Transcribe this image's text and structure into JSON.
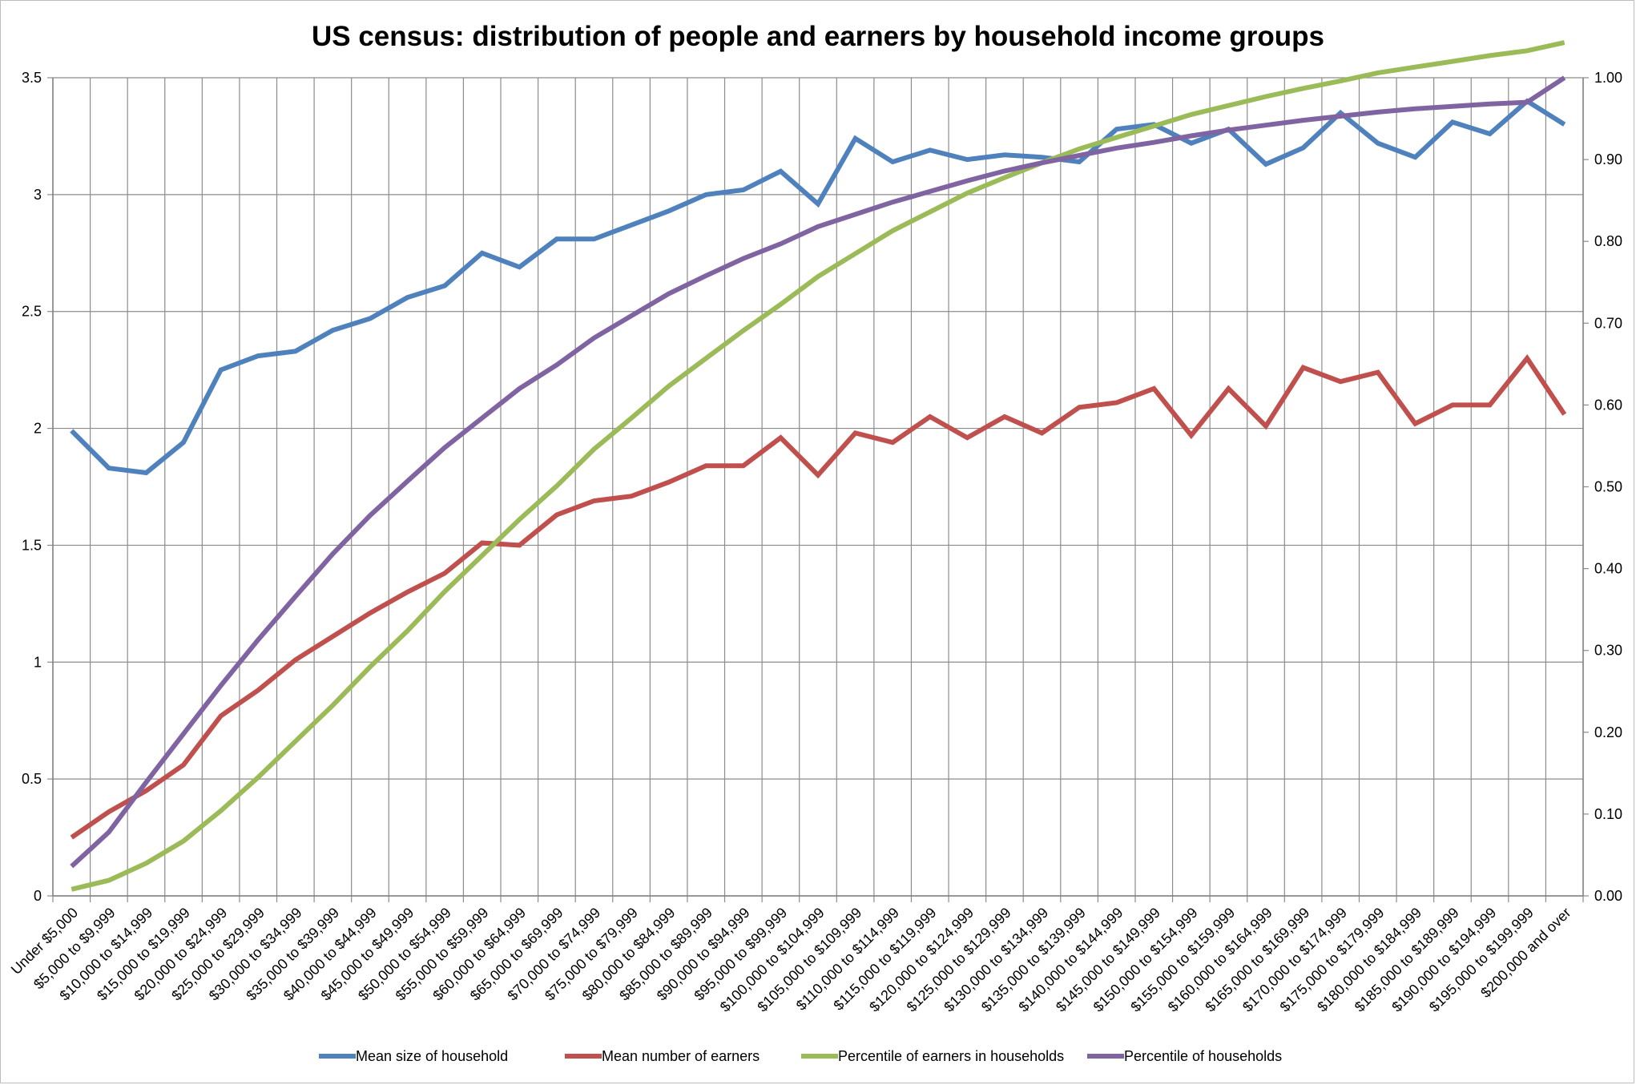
{
  "chart_data": {
    "type": "line",
    "title": "US census: distribution of people and earners by household income groups",
    "xlabel": "",
    "ylabel": "",
    "ylim": [
      0,
      3.5
    ],
    "y2lim": [
      0,
      1.0
    ],
    "y_ticks": [
      "0",
      "0.5",
      "1",
      "1.5",
      "2",
      "2.5",
      "3",
      "3.5"
    ],
    "y2_ticks": [
      "0.00",
      "0.10",
      "0.20",
      "0.30",
      "0.40",
      "0.50",
      "0.60",
      "0.70",
      "0.80",
      "0.90",
      "1.00"
    ],
    "grid": true,
    "legend_position": "bottom",
    "categories": [
      "Under $5,000",
      "$5,000 to $9,999",
      "$10,000 to $14,999",
      "$15,000 to $19,999",
      "$20,000 to $24,999",
      "$25,000 to $29,999",
      "$30,000 to $34,999",
      "$35,000 to $39,999",
      "$40,000 to $44,999",
      "$45,000 to $49,999",
      "$50,000 to $54,999",
      "$55,000 to $59,999",
      "$60,000 to $64,999",
      "$65,000 to $69,999",
      "$70,000 to $74,999",
      "$75,000 to $79,999",
      "$80,000 to $84,999",
      "$85,000 to $89,999",
      "$90,000 to $94,999",
      "$95,000 to $99,999",
      "$100,000 to $104,999",
      "$105,000 to $109,999",
      "$110,000 to $114,999",
      "$115,000 to $119,999",
      "$120,000 to $124,999",
      "$125,000 to $129,999",
      "$130,000 to $134,999",
      "$135,000 to $139,999",
      "$140,000 to $144,999",
      "$145,000 to $149,999",
      "$150,000 to $154,999",
      "$155,000 to $159,999",
      "$160,000 to $164,999",
      "$165,000 to $169,999",
      "$170,000 to $174,999",
      "$175,000 to $179,999",
      "$180,000 to $184,999",
      "$185,000 to $189,999",
      "$190,000 to $194,999",
      "$195,000 to $199,999",
      "$200,000 and over"
    ],
    "series": [
      {
        "name": "Mean size of household",
        "axis": "left",
        "color": "#4f81bd",
        "values": [
          1.99,
          1.83,
          1.81,
          1.94,
          2.25,
          2.31,
          2.33,
          2.42,
          2.47,
          2.56,
          2.61,
          2.75,
          2.69,
          2.81,
          2.81,
          2.87,
          2.93,
          3.0,
          3.02,
          3.1,
          2.96,
          3.24,
          3.14,
          3.19,
          3.15,
          3.17,
          3.16,
          3.14,
          3.28,
          3.3,
          3.22,
          3.28,
          3.13,
          3.2,
          3.35,
          3.22,
          3.16,
          3.31,
          3.26,
          3.4,
          3.3
        ]
      },
      {
        "name": "Mean number of earners",
        "axis": "left",
        "color": "#c0504d",
        "values": [
          0.25,
          0.36,
          0.45,
          0.56,
          0.77,
          0.88,
          1.01,
          1.11,
          1.21,
          1.3,
          1.38,
          1.51,
          1.5,
          1.63,
          1.69,
          1.71,
          1.77,
          1.84,
          1.84,
          1.96,
          1.8,
          1.98,
          1.94,
          2.05,
          1.96,
          2.05,
          1.98,
          2.09,
          2.11,
          2.17,
          1.97,
          2.17,
          2.01,
          2.26,
          2.2,
          2.24,
          2.02,
          2.1,
          2.1,
          2.3,
          2.06
        ]
      },
      {
        "name": "Percentile of earners in households",
        "axis": "right",
        "color": "#9bbb59",
        "values": [
          0.008,
          0.019,
          0.04,
          0.067,
          0.104,
          0.145,
          0.189,
          0.233,
          0.28,
          0.324,
          0.372,
          0.416,
          0.46,
          0.501,
          0.546,
          0.584,
          0.623,
          0.657,
          0.691,
          0.723,
          0.757,
          0.785,
          0.813,
          0.836,
          0.859,
          0.878,
          0.896,
          0.913,
          0.927,
          0.941,
          0.955,
          0.966,
          0.977,
          0.987,
          0.996,
          1.006,
          1.013,
          1.02,
          1.027,
          1.033,
          1.043
        ]
      },
      {
        "name": "Percentile of households",
        "axis": "right",
        "color": "#8064a2",
        "values": [
          0.036,
          0.078,
          0.139,
          0.198,
          0.257,
          0.313,
          0.366,
          0.418,
          0.465,
          0.507,
          0.548,
          0.584,
          0.62,
          0.649,
          0.682,
          0.709,
          0.736,
          0.758,
          0.779,
          0.797,
          0.818,
          0.833,
          0.848,
          0.861,
          0.874,
          0.886,
          0.896,
          0.905,
          0.914,
          0.921,
          0.929,
          0.936,
          0.942,
          0.948,
          0.953,
          0.958,
          0.962,
          0.965,
          0.968,
          0.97,
          1.0
        ]
      }
    ]
  }
}
